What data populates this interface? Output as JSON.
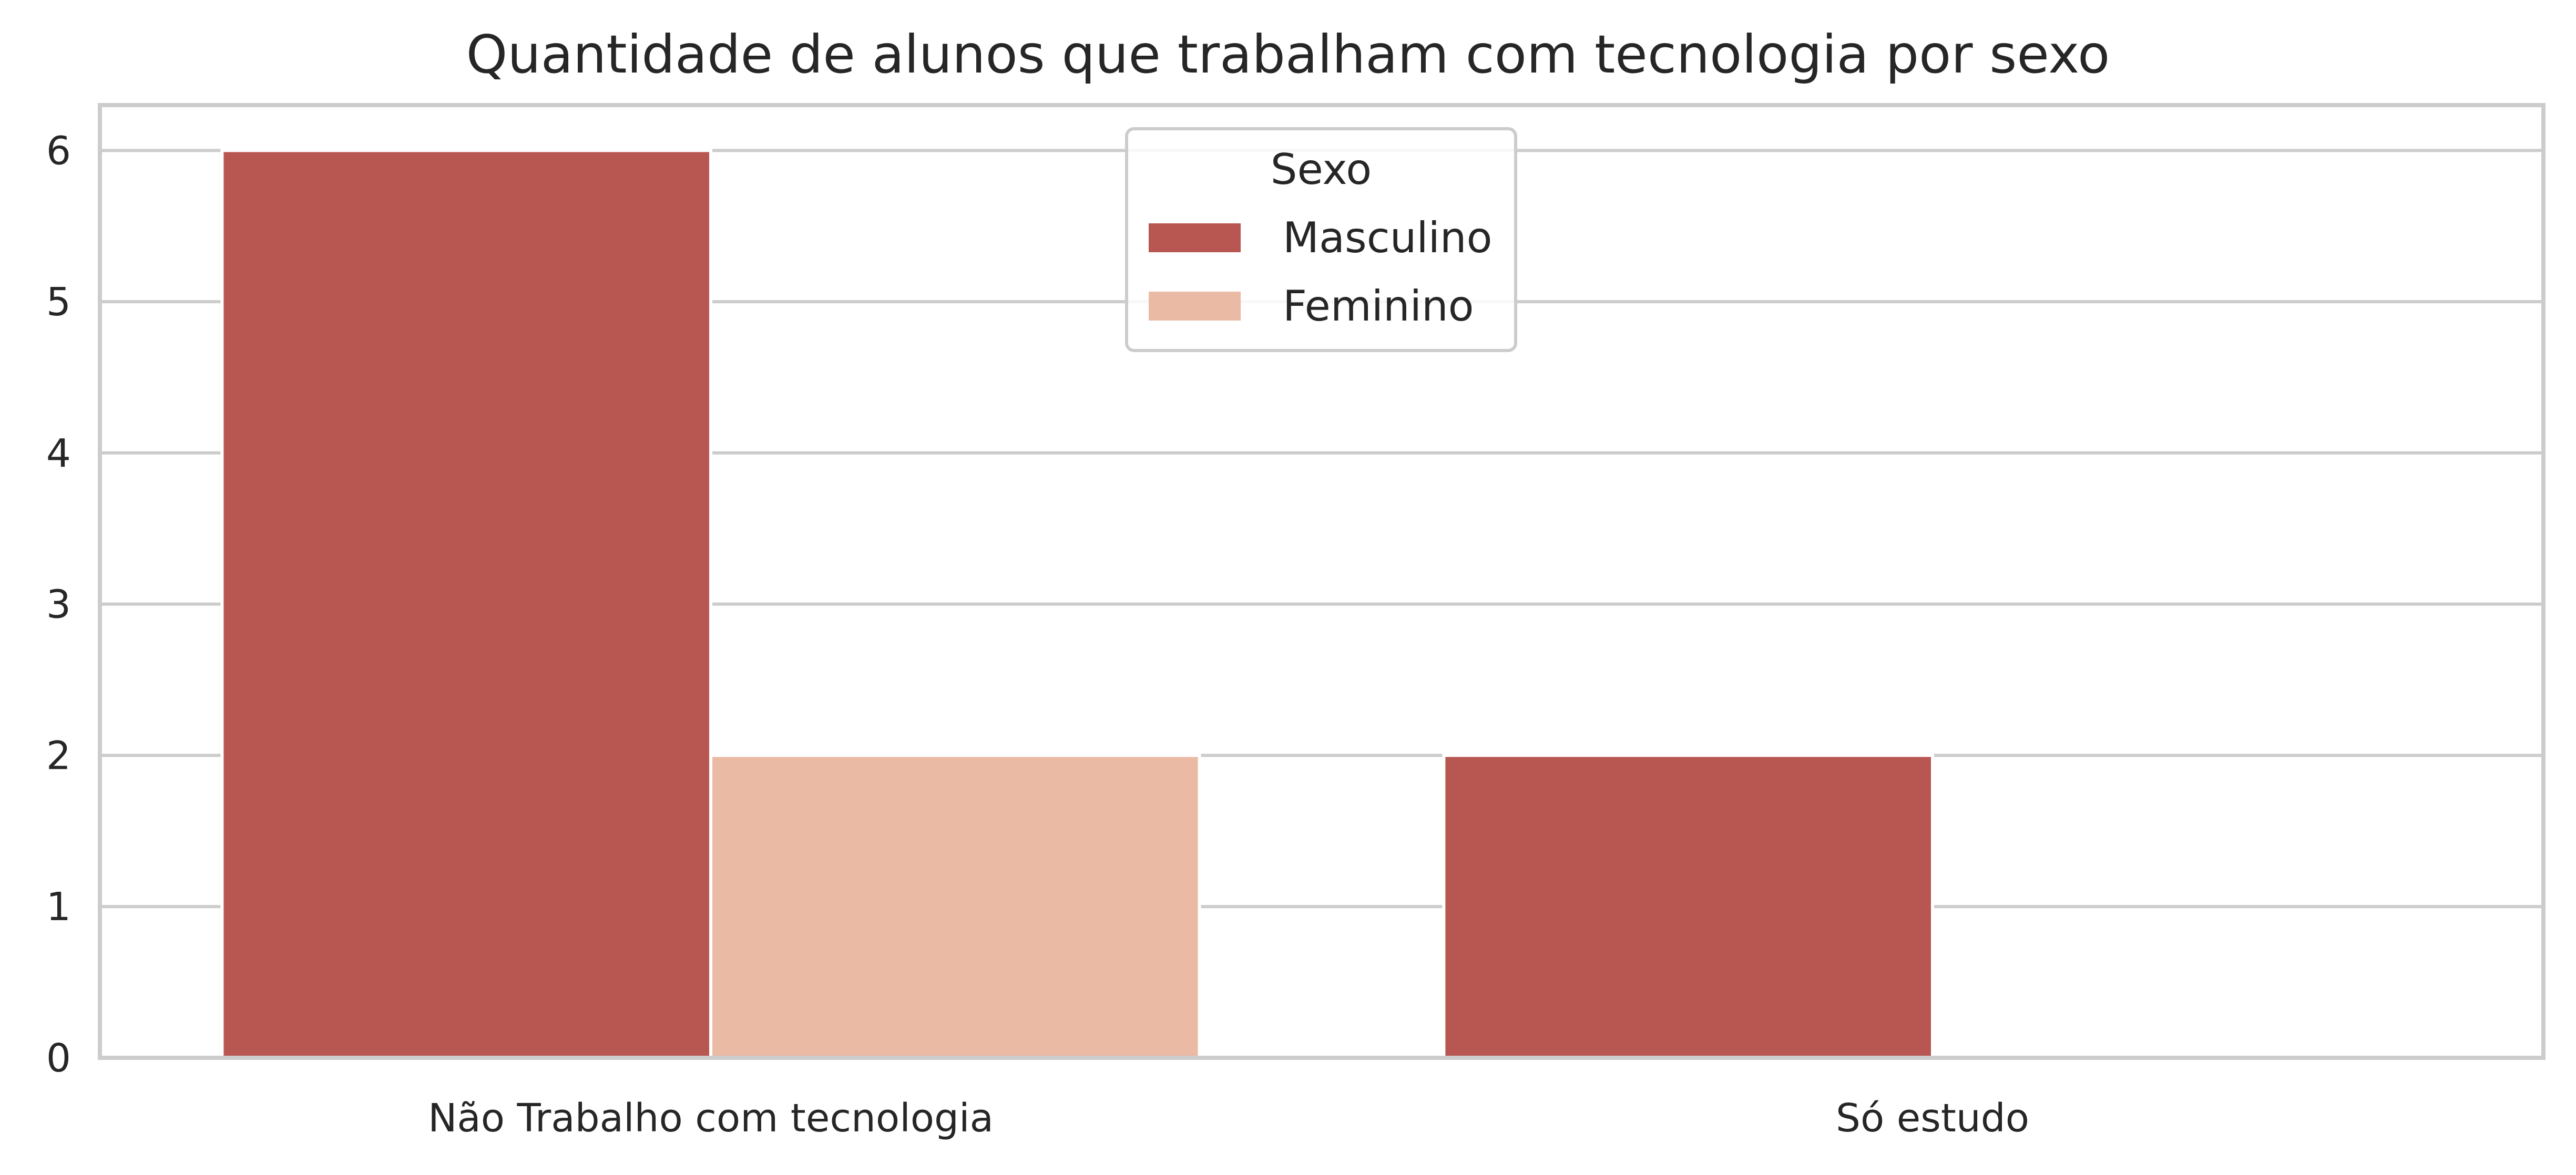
{
  "chart_data": {
    "type": "bar",
    "title": "Quantidade de alunos que trabalham com tecnologia por sexo",
    "xlabel": "",
    "ylabel": "",
    "categories": [
      "Não Trabalho com tecnologia",
      "Só estudo"
    ],
    "series": [
      {
        "name": "Masculino",
        "values": [
          6,
          2
        ],
        "color": "#b85752"
      },
      {
        "name": "Feminino",
        "values": [
          2,
          0
        ],
        "color": "#eabaa5"
      }
    ],
    "ylim": [
      0,
      6.3
    ],
    "yticks": [
      0,
      1,
      2,
      3,
      4,
      5,
      6
    ],
    "grid": true,
    "legend": {
      "title": "Sexo",
      "placement": "top-center"
    }
  }
}
